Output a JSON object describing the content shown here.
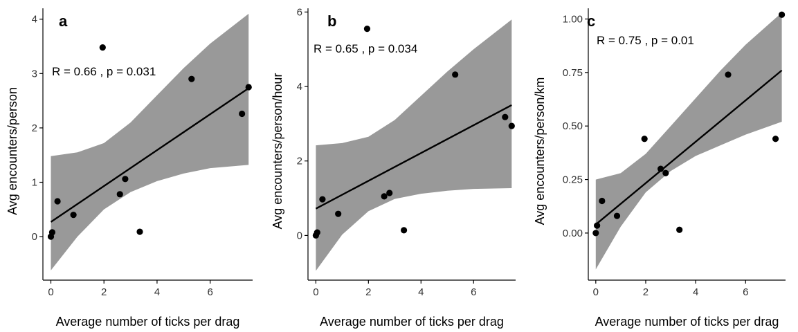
{
  "chart_data": [
    {
      "type": "scatter",
      "panel_label": "a",
      "xlabel": "Average number of ticks per drag",
      "ylabel": "Avg encounters/person",
      "xlim": [
        -0.3,
        7.6
      ],
      "ylim": [
        -0.8,
        4.2
      ],
      "xticks": [
        0,
        2,
        4,
        6
      ],
      "yticks": [
        {
          "value": 0,
          "label": "0"
        },
        {
          "value": 1,
          "label": "1"
        },
        {
          "value": 2,
          "label": "2"
        },
        {
          "value": 3,
          "label": "3"
        },
        {
          "value": 4,
          "label": "4"
        }
      ],
      "annotation": {
        "r_text": "R = 0.66",
        "sep": ", ",
        "p_text": "p = 0.031"
      },
      "points": [
        {
          "x": 0.0,
          "y": 0.0
        },
        {
          "x": 0.05,
          "y": 0.08
        },
        {
          "x": 0.25,
          "y": 0.65
        },
        {
          "x": 0.85,
          "y": 0.4
        },
        {
          "x": 1.95,
          "y": 3.48
        },
        {
          "x": 2.6,
          "y": 0.78
        },
        {
          "x": 2.8,
          "y": 1.06
        },
        {
          "x": 3.35,
          "y": 0.09
        },
        {
          "x": 5.3,
          "y": 2.9
        },
        {
          "x": 7.2,
          "y": 2.26
        },
        {
          "x": 7.45,
          "y": 2.75
        }
      ],
      "fit": {
        "x": [
          0,
          7.45
        ],
        "y": [
          0.27,
          2.73
        ]
      },
      "band": [
        {
          "x": 0,
          "lo": -0.62,
          "hi": 1.48
        },
        {
          "x": 1,
          "lo": 0.0,
          "hi": 1.55
        },
        {
          "x": 2,
          "lo": 0.5,
          "hi": 1.72
        },
        {
          "x": 3,
          "lo": 0.82,
          "hi": 2.1
        },
        {
          "x": 4,
          "lo": 1.02,
          "hi": 2.6
        },
        {
          "x": 5,
          "lo": 1.16,
          "hi": 3.1
        },
        {
          "x": 6,
          "lo": 1.26,
          "hi": 3.55
        },
        {
          "x": 7.45,
          "lo": 1.32,
          "hi": 4.1
        }
      ]
    },
    {
      "type": "scatter",
      "panel_label": "b",
      "xlabel": "Average number of ticks per drag",
      "ylabel": "Avg encounters/person/hour",
      "xlim": [
        -0.3,
        7.6
      ],
      "ylim": [
        -1.2,
        6.1
      ],
      "xticks": [
        0,
        2,
        4,
        6
      ],
      "yticks": [
        {
          "value": 0,
          "label": "0"
        },
        {
          "value": 2,
          "label": "2"
        },
        {
          "value": 4,
          "label": "4"
        },
        {
          "value": 6,
          "label": "6"
        }
      ],
      "annotation": {
        "r_text": "R = 0.65",
        "sep": ", ",
        "p_text": "p = 0.034"
      },
      "points": [
        {
          "x": 0.0,
          "y": 0.0
        },
        {
          "x": 0.05,
          "y": 0.08
        },
        {
          "x": 0.25,
          "y": 0.97
        },
        {
          "x": 0.85,
          "y": 0.58
        },
        {
          "x": 1.95,
          "y": 5.55
        },
        {
          "x": 2.6,
          "y": 1.05
        },
        {
          "x": 2.8,
          "y": 1.14
        },
        {
          "x": 3.35,
          "y": 0.14
        },
        {
          "x": 5.3,
          "y": 4.32
        },
        {
          "x": 7.2,
          "y": 3.18
        },
        {
          "x": 7.45,
          "y": 2.94
        }
      ],
      "fit": {
        "x": [
          0,
          7.45
        ],
        "y": [
          0.72,
          3.5
        ]
      },
      "band": [
        {
          "x": 0,
          "lo": -0.95,
          "hi": 2.42
        },
        {
          "x": 1,
          "lo": 0.02,
          "hi": 2.48
        },
        {
          "x": 2,
          "lo": 0.65,
          "hi": 2.65
        },
        {
          "x": 3,
          "lo": 0.98,
          "hi": 3.1
        },
        {
          "x": 4,
          "lo": 1.12,
          "hi": 3.75
        },
        {
          "x": 5,
          "lo": 1.2,
          "hi": 4.4
        },
        {
          "x": 6,
          "lo": 1.25,
          "hi": 5.0
        },
        {
          "x": 7.45,
          "lo": 1.27,
          "hi": 5.8
        }
      ]
    },
    {
      "type": "scatter",
      "panel_label": "c",
      "xlabel": "Average number of ticks per drag",
      "ylabel": "Avg encounters/person/km",
      "xlim": [
        -0.3,
        7.6
      ],
      "ylim": [
        -0.22,
        1.05
      ],
      "xticks": [
        0,
        2,
        4,
        6
      ],
      "yticks": [
        {
          "value": 0,
          "label": "0.00"
        },
        {
          "value": 0.25,
          "label": "0.25"
        },
        {
          "value": 0.5,
          "label": "0.50"
        },
        {
          "value": 0.75,
          "label": "0.75"
        },
        {
          "value": 1.0,
          "label": "1.00"
        }
      ],
      "annotation": {
        "r_text": "R = 0.75",
        "sep": ", ",
        "p_text": "p = 0.01"
      },
      "points": [
        {
          "x": 0.0,
          "y": 0.0
        },
        {
          "x": 0.05,
          "y": 0.035
        },
        {
          "x": 0.25,
          "y": 0.15
        },
        {
          "x": 0.85,
          "y": 0.08
        },
        {
          "x": 1.95,
          "y": 0.44
        },
        {
          "x": 2.6,
          "y": 0.3
        },
        {
          "x": 2.8,
          "y": 0.28
        },
        {
          "x": 3.35,
          "y": 0.015
        },
        {
          "x": 5.3,
          "y": 0.74
        },
        {
          "x": 7.2,
          "y": 0.44
        },
        {
          "x": 7.45,
          "y": 1.02
        }
      ],
      "fit": {
        "x": [
          0,
          7.45
        ],
        "y": [
          0.04,
          0.76
        ]
      },
      "band": [
        {
          "x": 0,
          "lo": -0.17,
          "hi": 0.25
        },
        {
          "x": 1,
          "lo": 0.03,
          "hi": 0.28
        },
        {
          "x": 2,
          "lo": 0.19,
          "hi": 0.37
        },
        {
          "x": 3,
          "lo": 0.29,
          "hi": 0.5
        },
        {
          "x": 4,
          "lo": 0.36,
          "hi": 0.63
        },
        {
          "x": 5,
          "lo": 0.41,
          "hi": 0.76
        },
        {
          "x": 6,
          "lo": 0.46,
          "hi": 0.88
        },
        {
          "x": 7.45,
          "lo": 0.52,
          "hi": 1.03
        }
      ]
    }
  ],
  "colors": {
    "band": "#999999",
    "points": "#000000",
    "fit_line": "#000000",
    "axis": "#000000",
    "tick_label": "#333333"
  }
}
